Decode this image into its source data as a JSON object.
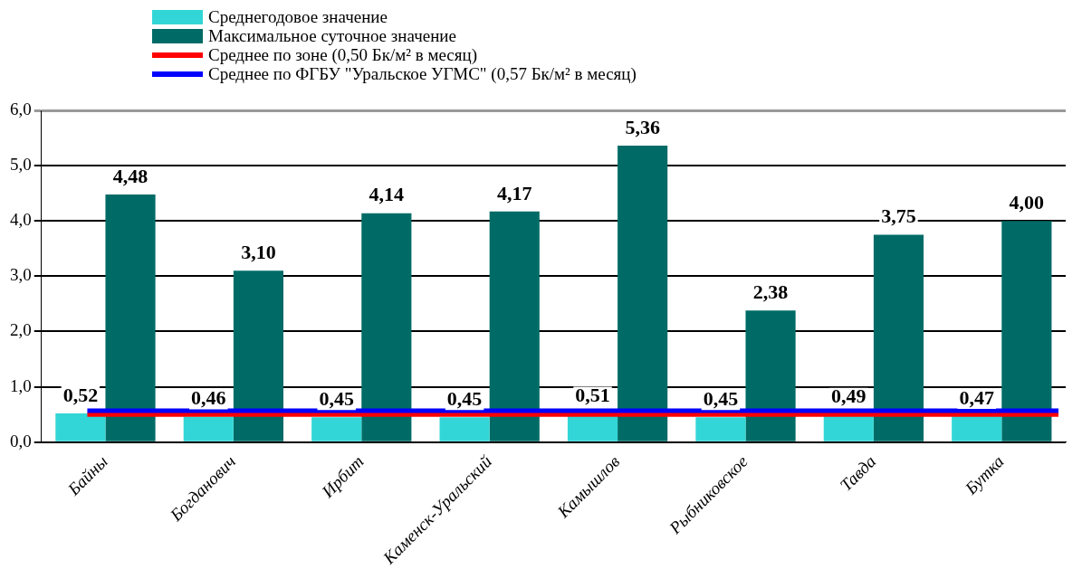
{
  "chart_data": {
    "type": "bar",
    "categories": [
      "Байны",
      "Богданович",
      "Ирбит",
      "Каменск-Уральский",
      "Камышлов",
      "Рыбниковское",
      "Тавда",
      "Бутка"
    ],
    "series": [
      {
        "name": "Среднегодовое значение",
        "color": "#33d6d6",
        "values": [
          0.52,
          0.46,
          0.45,
          0.45,
          0.51,
          0.45,
          0.49,
          0.47
        ],
        "value_labels": [
          "0,52",
          "0,46",
          "0,45",
          "0,45",
          "0,51",
          "0,45",
          "0,49",
          "0,47"
        ]
      },
      {
        "name": "Максимальное суточное значение",
        "color": "#006b66",
        "values": [
          4.48,
          3.1,
          4.14,
          4.17,
          5.36,
          2.38,
          3.75,
          4.0
        ],
        "value_labels": [
          "4,48",
          "3,10",
          "4,14",
          "4,17",
          "5,36",
          "2,38",
          "3,75",
          "4,00"
        ]
      }
    ],
    "ref_lines": [
      {
        "axis": "y",
        "value": 0.5,
        "label": "Среднее по зоне (0,50 Бк/м² в месяц)",
        "color": "#ff0000"
      },
      {
        "axis": "y",
        "value": 0.57,
        "label": "Среднее по ФГБУ \"Уральское УГМС\" (0,57 Бк/м² в месяц)",
        "color": "#0000ff"
      }
    ],
    "ylim": [
      0,
      6
    ],
    "yticks": [
      {
        "value": 0,
        "label": "0,0"
      },
      {
        "value": 1,
        "label": "1,0"
      },
      {
        "value": 2,
        "label": "2,0"
      },
      {
        "value": 3,
        "label": "3,0"
      },
      {
        "value": 4,
        "label": "4,0"
      },
      {
        "value": 5,
        "label": "5,0"
      },
      {
        "value": 6,
        "label": "6,0"
      }
    ],
    "grid": "y",
    "legend": "top left"
  }
}
